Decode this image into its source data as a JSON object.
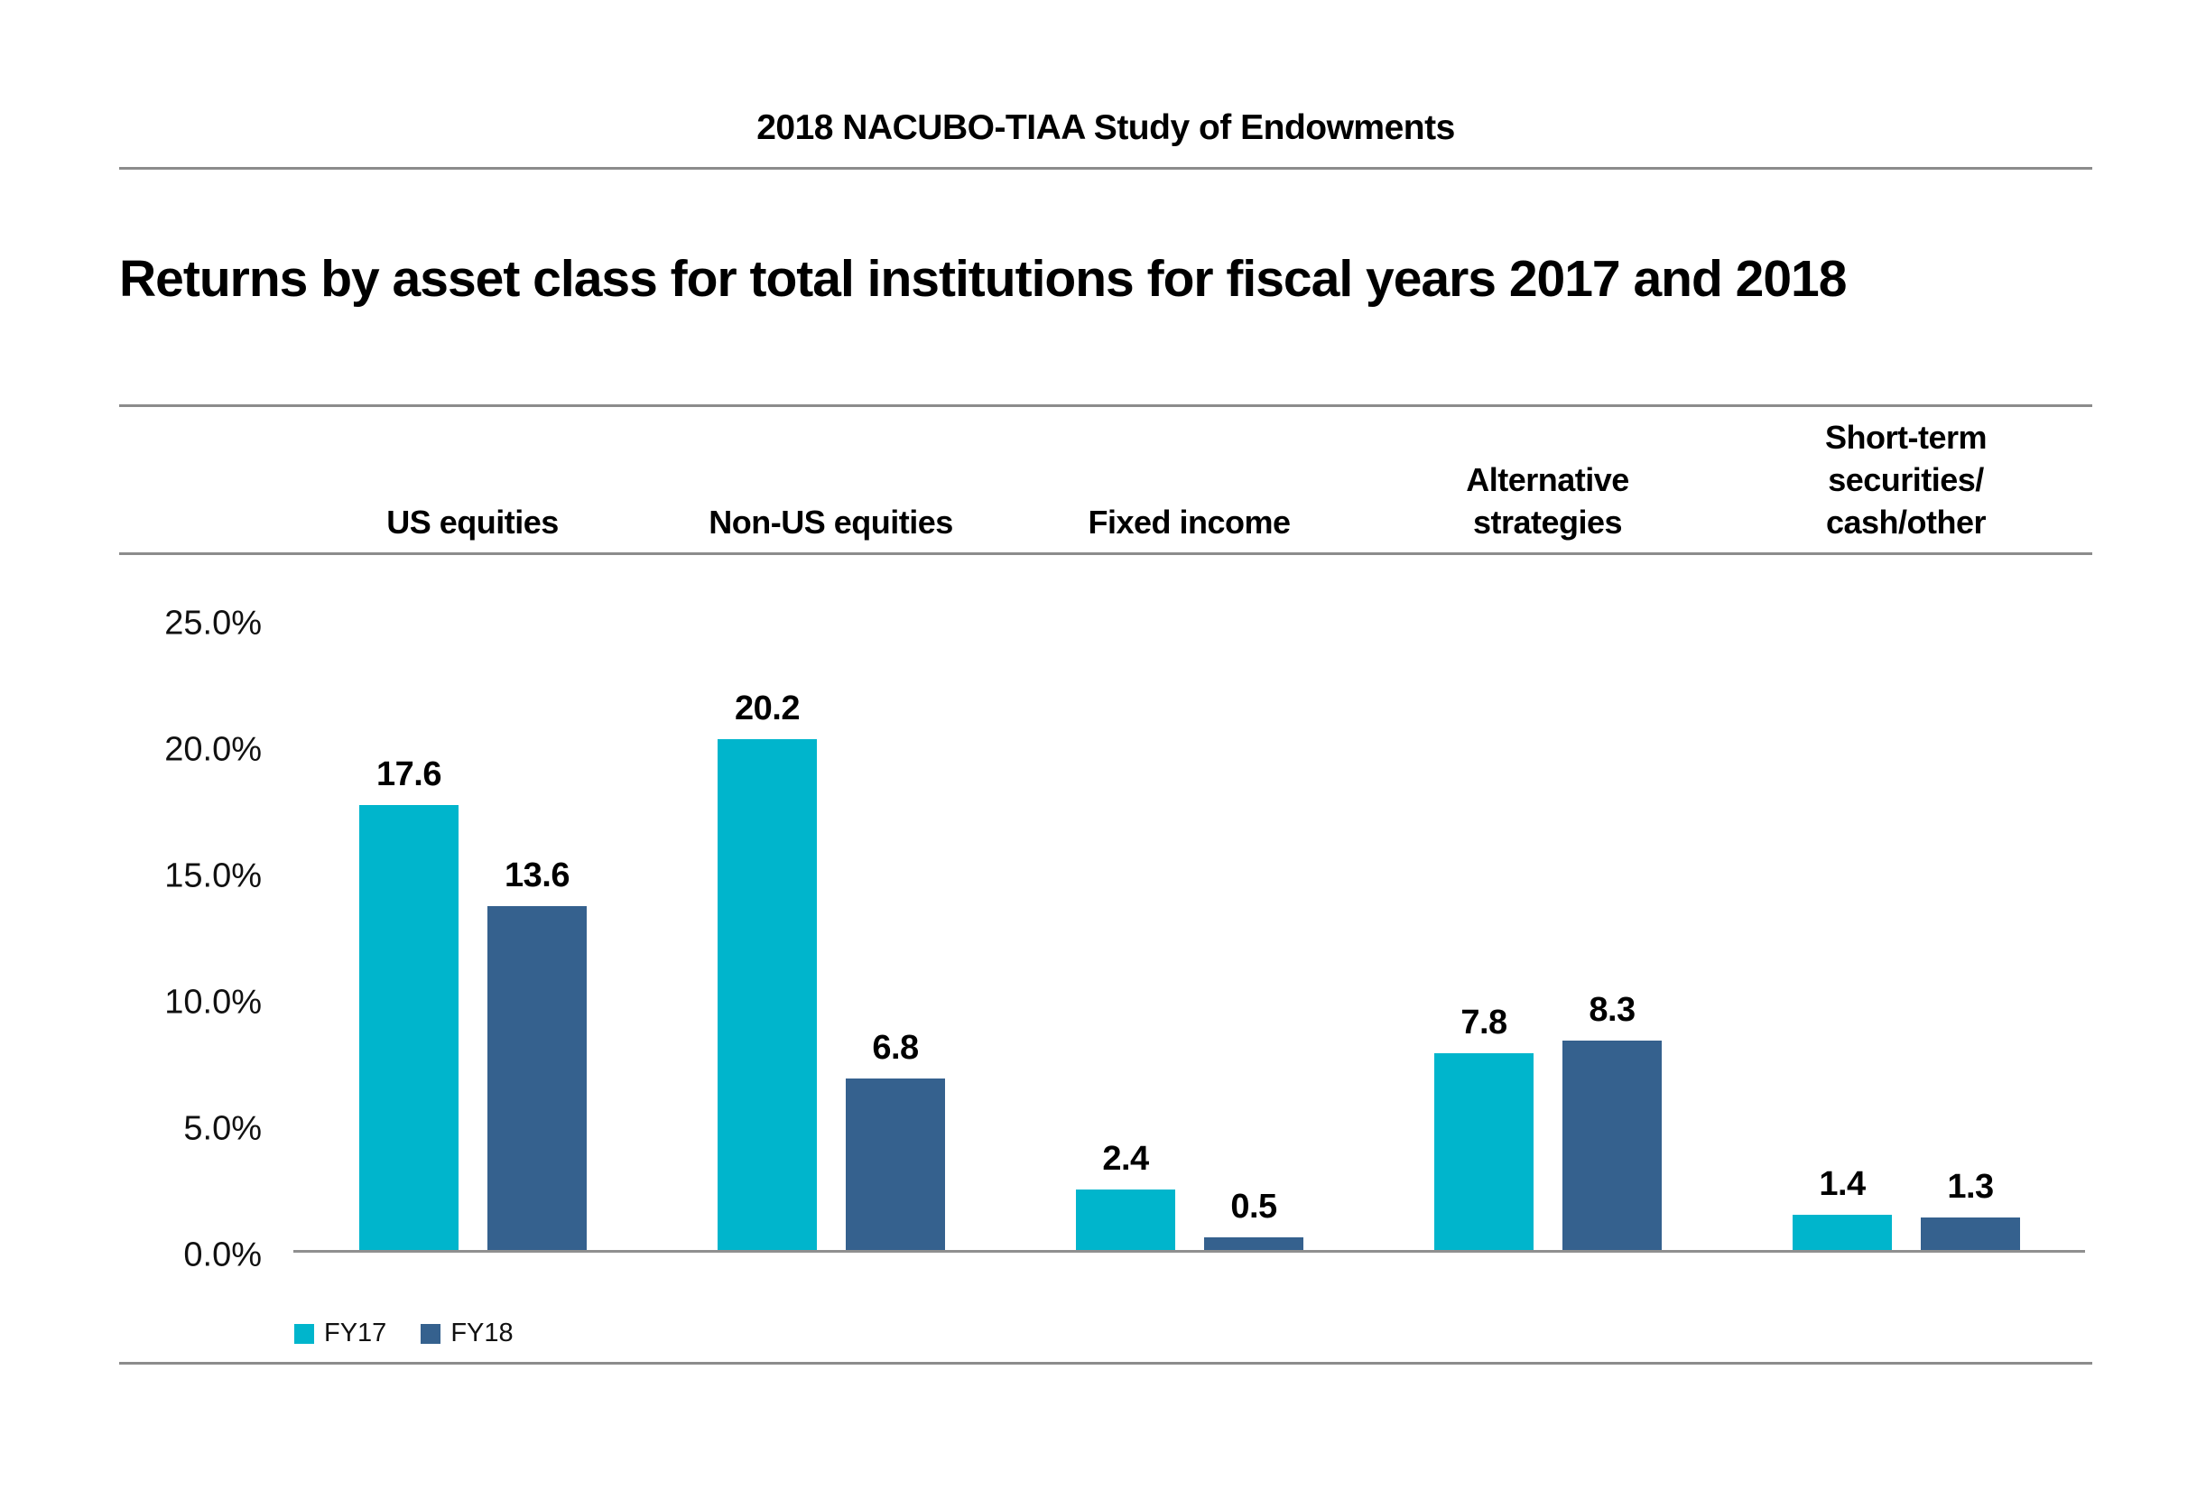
{
  "page": {
    "header_title": "2018 NACUBO-TIAA Study of Endowments",
    "chart_title": "Returns by asset class for total institutions for fiscal years 2017 and 2018"
  },
  "columns": [
    {
      "label": "US equities"
    },
    {
      "label": "Non-US equities"
    },
    {
      "label": "Fixed income"
    },
    {
      "label": "Alternative\nstrategies"
    },
    {
      "label": "Short-term\nsecurities/\ncash/other"
    }
  ],
  "y_axis": {
    "ticks": [
      "25.0%",
      "20.0%",
      "15.0%",
      "10.0%",
      "5.0%",
      "0.0%"
    ],
    "tick_values": [
      25,
      20,
      15,
      10,
      5,
      0
    ]
  },
  "legend": {
    "items": [
      {
        "label": "FY17",
        "color": "#00b5cc"
      },
      {
        "label": "FY18",
        "color": "#35618e"
      }
    ]
  },
  "colors": {
    "fy17": "#00b5cc",
    "fy18": "#35618e",
    "divider_gray": "#8c8c8c",
    "axis_gray": "#8f8f8f"
  },
  "chart_data": {
    "type": "bar",
    "title": "Returns by asset class for total institutions for fiscal years 2017 and 2018",
    "categories": [
      "US equities",
      "Non-US equities",
      "Fixed income",
      "Alternative strategies",
      "Short-term securities/cash/other"
    ],
    "series": [
      {
        "name": "FY17",
        "color": "#00b5cc",
        "values": [
          17.6,
          20.2,
          2.4,
          7.8,
          1.4
        ]
      },
      {
        "name": "FY18",
        "color": "#35618e",
        "values": [
          13.6,
          6.8,
          0.5,
          8.3,
          1.3
        ]
      }
    ],
    "value_labels": [
      "17.6",
      "13.6",
      "20.2",
      "6.8",
      "2.4",
      "0.5",
      "7.8",
      "8.3",
      "1.4",
      "1.3"
    ],
    "xlabel": "",
    "ylabel": "",
    "ylim": [
      0,
      25
    ],
    "ytick_step": 5,
    "ytick_format": "percent_one_decimal",
    "grid": false,
    "legend_position": "bottom-left",
    "value_labels_shown": true
  }
}
